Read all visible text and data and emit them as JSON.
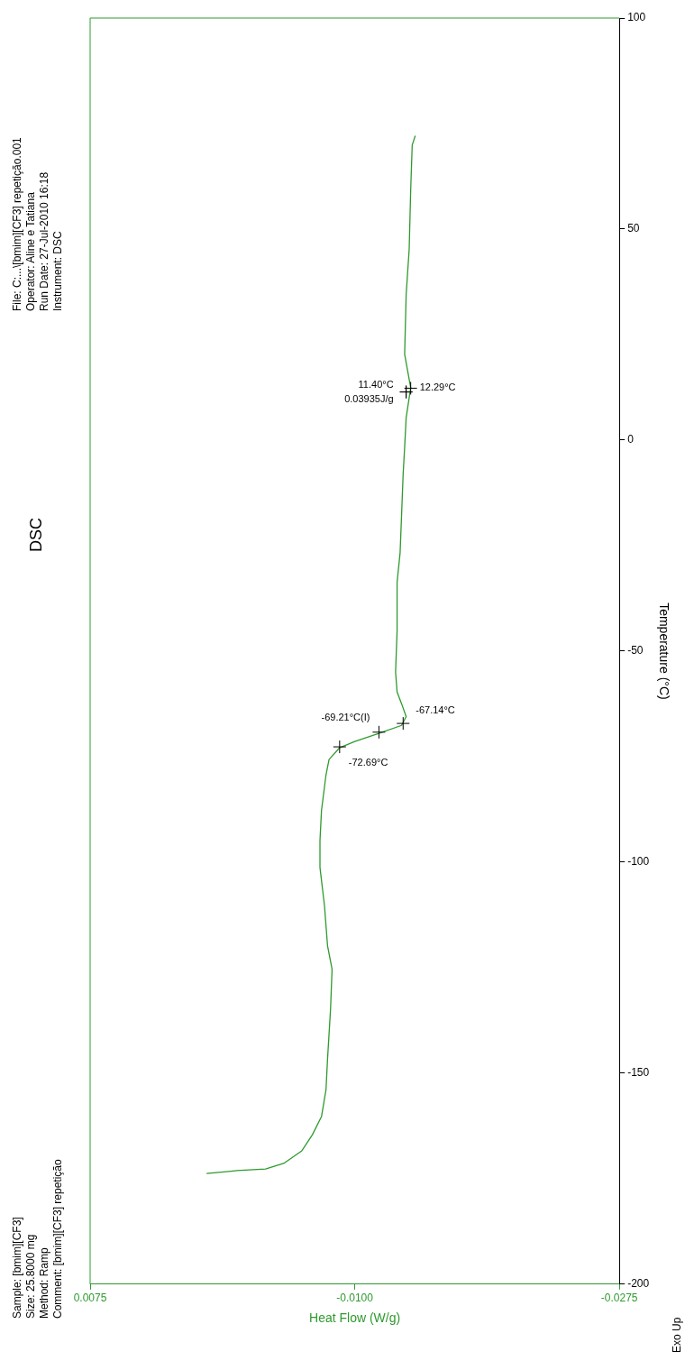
{
  "chart_data": {
    "type": "line",
    "title": "DSC",
    "xlabel": "Heat Flow (W/g)",
    "ylabel": "Temperature (°C)",
    "xlim": [
      0.0075,
      -0.0275
    ],
    "xticks": [
      0.0075,
      {
        "value": -0.01,
        "label": "-0.0100"
      },
      -0.0275
    ],
    "ylim": [
      -200,
      100
    ],
    "yticks": [
      -200,
      -150,
      -100,
      -50,
      0,
      50,
      100
    ],
    "grid": false,
    "legend": false,
    "marker": "none",
    "line_style": "solid",
    "series": [
      {
        "color": "#2e9a2e",
        "x": [
          -0.0002,
          -0.0022,
          -0.0041,
          -0.0053,
          -0.0065,
          -0.0072,
          -0.0078,
          -0.0081,
          -0.0082,
          -0.0084,
          -0.0085,
          -0.0082,
          -0.008,
          -0.0077,
          -0.0077,
          -0.0078,
          -0.0081,
          -0.0083,
          -0.009,
          -0.01,
          -0.0116,
          -0.0131,
          -0.0134,
          -0.0131,
          -0.0128,
          -0.0127,
          -0.0128,
          -0.0128,
          -0.013,
          -0.0131,
          -0.0132,
          -0.0133,
          -0.0134,
          -0.0137,
          -0.0133,
          -0.0134,
          -0.0136,
          -0.0137,
          -0.0138,
          -0.014
        ],
        "values": [
          -173.8,
          -173.1,
          -172.7,
          -171.4,
          -168.4,
          -164.6,
          -160.3,
          -153.9,
          -146.7,
          -134.8,
          -125.4,
          -119.8,
          -110.4,
          -101.3,
          -94.9,
          -87.8,
          -79.3,
          -75.7,
          -72.9,
          -71.4,
          -69.5,
          -67.6,
          -65.5,
          -62.5,
          -59.7,
          -55.0,
          -45.2,
          -33.7,
          -26.7,
          -17.5,
          -8.1,
          -1.7,
          5.3,
          12.4,
          20.3,
          34.5,
          45.2,
          59.3,
          69.9,
          72.1
        ]
      }
    ],
    "annotations": [
      "Sample: [bmim][CF3]",
      "Size:  25.8000 mg",
      "Method: Ramp",
      "Comment: [bmim][CF3] repetição",
      "File: C:...\\[bmim][CF3] repetição.001",
      "Operator: Aline e Tatiana",
      "Run Date: 27-Jul-2010 16:18",
      "Instrument: DSC",
      "Exo Up",
      {
        "text": "-69.21°C(I)",
        "x": -0.0116,
        "y": -69.21
      },
      {
        "text": "-72.69°C",
        "x": -0.009,
        "y": -72.69
      },
      {
        "text": "-67.14°C",
        "x": -0.0132,
        "y": -67.14
      },
      {
        "text": "11.40°C",
        "x": -0.0134,
        "y": 11.4
      },
      {
        "text": "0.03935J/g",
        "x": -0.0134,
        "y": 11.4
      },
      {
        "text": "12.29°C",
        "x": -0.0137,
        "y": 12.29
      }
    ]
  }
}
